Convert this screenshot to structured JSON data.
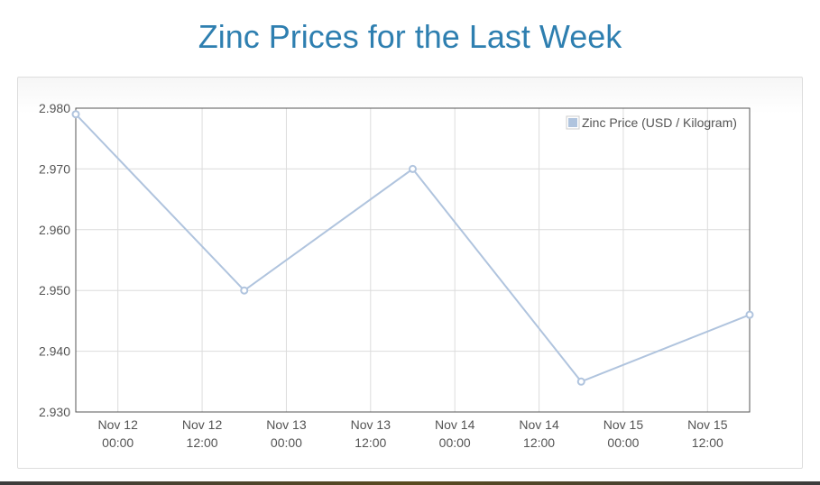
{
  "title": "Zinc Prices for the Last Week",
  "chart_data": {
    "type": "line",
    "title": "Zinc Prices for the Last Week",
    "xlabel": "",
    "ylabel": "",
    "ylim": [
      2.93,
      2.98
    ],
    "y_ticks": [
      "2.930",
      "2.940",
      "2.950",
      "2.960",
      "2.970",
      "2.980"
    ],
    "x_ticks": [
      {
        "line1": "Nov 12",
        "line2": "00:00",
        "t": 0
      },
      {
        "line1": "Nov 12",
        "line2": "12:00",
        "t": 12
      },
      {
        "line1": "Nov 13",
        "line2": "00:00",
        "t": 24
      },
      {
        "line1": "Nov 13",
        "line2": "12:00",
        "t": 36
      },
      {
        "line1": "Nov 14",
        "line2": "00:00",
        "t": 48
      },
      {
        "line1": "Nov 14",
        "line2": "12:00",
        "t": 60
      },
      {
        "line1": "Nov 15",
        "line2": "00:00",
        "t": 72
      },
      {
        "line1": "Nov 15",
        "line2": "12:00",
        "t": 84
      }
    ],
    "xlim_hours": [
      -6,
      90
    ],
    "series": [
      {
        "name": "Zinc Price (USD / Kilogram)",
        "color": "#b0c4de",
        "points": [
          {
            "t": -6,
            "y": 2.979
          },
          {
            "t": 18,
            "y": 2.95
          },
          {
            "t": 42,
            "y": 2.97
          },
          {
            "t": 66,
            "y": 2.935
          },
          {
            "t": 90,
            "y": 2.946
          }
        ]
      }
    ],
    "legend": "top-right",
    "grid": true
  }
}
